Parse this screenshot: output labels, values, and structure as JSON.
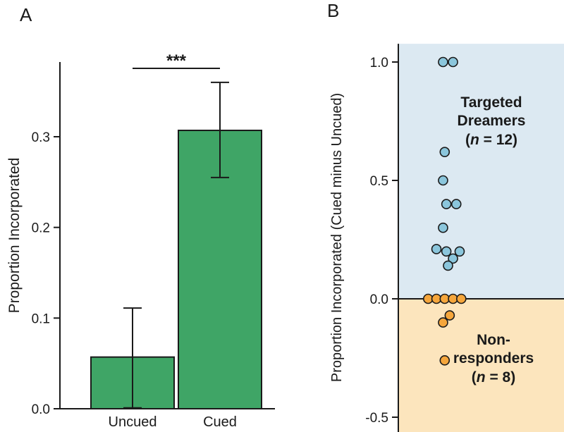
{
  "panels": {
    "a": {
      "label": "A"
    },
    "b": {
      "label": "B"
    }
  },
  "chart_data": [
    {
      "type": "bar",
      "panel": "A",
      "ylabel": "Proportion Incorporated",
      "categories": [
        "Uncued",
        "Cued"
      ],
      "values": [
        0.057,
        0.307
      ],
      "error_low": [
        0.001,
        0.255
      ],
      "error_high": [
        0.111,
        0.36
      ],
      "yticks": [
        "0.0",
        "0.1",
        "0.2",
        "0.3"
      ],
      "ytick_values": [
        0.0,
        0.1,
        0.2,
        0.3
      ],
      "ylim": [
        0,
        0.3824
      ],
      "grid": false,
      "bar_color": "#3fa566",
      "bar_edge_color": "#1a1a1a",
      "significance_label": "***"
    },
    {
      "type": "scatter",
      "panel": "B",
      "ylabel": "Proportion Incorporated (Cued minus Uncued)",
      "yticks": [
        "1.0",
        "0.5",
        "0.0",
        "-0.5"
      ],
      "ytick_values": [
        1.0,
        0.5,
        0.0,
        -0.5
      ],
      "ylim": [
        -0.5625,
        1.077
      ],
      "zero_line": 0,
      "grid": false,
      "regions": [
        {
          "name": "targeted-dreamers-region",
          "from": 0,
          "to": 1.077,
          "color": "#dce9f2"
        },
        {
          "name": "non-responders-region",
          "from": -0.5625,
          "to": 0,
          "color": "#fce5bd"
        }
      ],
      "series": [
        {
          "name": "Targeted Dreamers",
          "n": 12,
          "dot_fill": "#8bc6dc",
          "dot_edge": "#1a1a1a",
          "label_lines": [
            "Targeted",
            "Dreamers",
            "(n = 12)"
          ],
          "label_color": "#4d93ad",
          "points": [
            {
              "x": 0.27,
              "y": 1.0
            },
            {
              "x": 0.33,
              "y": 1.0
            },
            {
              "x": 0.28,
              "y": 0.62
            },
            {
              "x": 0.27,
              "y": 0.5
            },
            {
              "x": 0.29,
              "y": 0.4
            },
            {
              "x": 0.35,
              "y": 0.4
            },
            {
              "x": 0.27,
              "y": 0.3
            },
            {
              "x": 0.23,
              "y": 0.21
            },
            {
              "x": 0.29,
              "y": 0.2
            },
            {
              "x": 0.37,
              "y": 0.2
            },
            {
              "x": 0.33,
              "y": 0.17
            },
            {
              "x": 0.3,
              "y": 0.14
            }
          ]
        },
        {
          "name": "Non-responders",
          "n": 8,
          "dot_fill": "#f5a63c",
          "dot_edge": "#1a1a1a",
          "label_lines": [
            "Non-",
            "responders",
            "(n = 8)"
          ],
          "label_color": "#e6912a",
          "points": [
            {
              "x": 0.18,
              "y": 0.0
            },
            {
              "x": 0.23,
              "y": 0.0
            },
            {
              "x": 0.28,
              "y": 0.0
            },
            {
              "x": 0.33,
              "y": 0.0
            },
            {
              "x": 0.38,
              "y": 0.0
            },
            {
              "x": 0.31,
              "y": -0.07
            },
            {
              "x": 0.27,
              "y": -0.1
            },
            {
              "x": 0.28,
              "y": -0.26
            }
          ]
        }
      ]
    }
  ]
}
